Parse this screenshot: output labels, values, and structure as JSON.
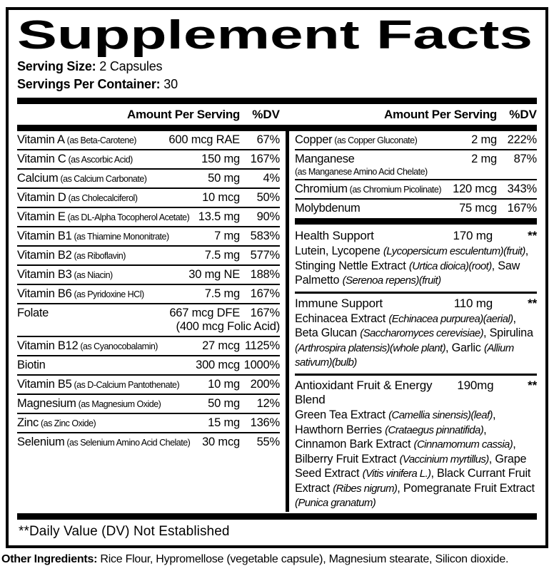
{
  "meta": {
    "colors": {
      "text": "#000000",
      "background": "#ffffff"
    }
  },
  "title": "Supplement Facts",
  "serving": {
    "size_label": "Serving Size:",
    "size_value": "2 Capsules",
    "container_label": "Servings Per Container:",
    "container_value": "30"
  },
  "table_header": {
    "amount": "Amount Per Serving",
    "dv": "%DV"
  },
  "left_rows": [
    {
      "name": "Vitamin A",
      "form": "(as Beta-Carotene)",
      "amount": "600 mcg RAE",
      "dv": "67%"
    },
    {
      "name": "Vitamin C",
      "form": "(as Ascorbic Acid)",
      "amount": "150 mg",
      "dv": "167%"
    },
    {
      "name": "Calcium",
      "form": "(as Calcium Carbonate)",
      "amount": "50 mg",
      "dv": "4%"
    },
    {
      "name": "Vitamin D",
      "form": "(as Cholecalciferol)",
      "amount": "10 mcg",
      "dv": "50%"
    },
    {
      "name": "Vitamin E",
      "form": "(as DL-Alpha Tocopherol Acetate)",
      "amount": "13.5 mg",
      "dv": "90%"
    },
    {
      "name": "Vitamin B1",
      "form": "(as Thiamine Mononitrate)",
      "amount": "7 mg",
      "dv": "583%"
    },
    {
      "name": "Vitamin B2",
      "form": "(as Riboflavin)",
      "amount": "7.5 mg",
      "dv": "577%"
    },
    {
      "name": "Vitamin B3",
      "form": "(as Niacin)",
      "amount": "30 mg NE",
      "dv": "188%"
    },
    {
      "name": "Vitamin B6",
      "form": "(as Pyridoxine HCl)",
      "amount": "7.5 mg",
      "dv": "167%"
    },
    {
      "name": "Folate",
      "form": "",
      "amount": "667 mcg DFE",
      "amount2": "(400 mcg Folic Acid)",
      "dv": "167%"
    },
    {
      "name": "Vitamin B12",
      "form": "(as Cyanocobalamin)",
      "amount": "27 mcg",
      "dv": "1125%"
    },
    {
      "name": "Biotin",
      "form": "",
      "amount": "300 mcg",
      "dv": "1000%"
    },
    {
      "name": "Vitamin B5",
      "form": "(as D-Calcium Pantothenate)",
      "amount": "10 mg",
      "dv": "200%"
    },
    {
      "name": "Magnesium",
      "form": "(as Magnesium Oxide)",
      "amount": "50 mg",
      "dv": "12%"
    },
    {
      "name": "Zinc",
      "form": "(as Zinc Oxide)",
      "amount": "15 mg",
      "dv": "136%"
    },
    {
      "name": "Selenium",
      "form": "(as Selenium Amino Acid Chelate)",
      "amount": "30 mcg",
      "dv": "55%"
    }
  ],
  "right_rows": [
    {
      "name": "Copper",
      "form": "(as Copper Gluconate)",
      "amount": "2 mg",
      "dv": "222%"
    },
    {
      "name": "Manganese",
      "form2": "(as Manganese Amino Acid Chelate)",
      "amount": "2 mg",
      "dv": "87%"
    },
    {
      "name": "Chromium",
      "form": "(as Chromium Picolinate)",
      "amount": "120 mcg",
      "dv": "343%"
    },
    {
      "name": "Molybdenum",
      "form": "",
      "amount": "75 mcg",
      "dv": "167%"
    }
  ],
  "blends": [
    {
      "name": "Health Support",
      "amount": "170 mg",
      "dv": "**",
      "desc": [
        {
          "t": "Lutein, Lycopene "
        },
        {
          "t": "(Lycopersicum esculentum)(fruit)",
          "i": true
        },
        {
          "t": ", Stinging Nettle Extract "
        },
        {
          "t": "(Urtica dioica)(root)",
          "i": true
        },
        {
          "t": ", Saw Palmetto "
        },
        {
          "t": "(Serenoa repens)(fruit)",
          "i": true
        }
      ]
    },
    {
      "name": "Immune Support",
      "amount": "110 mg",
      "dv": "**",
      "desc": [
        {
          "t": "Echinacea Extract "
        },
        {
          "t": "(Echinacea purpurea)(aerial)",
          "i": true
        },
        {
          "t": ", Beta Glucan "
        },
        {
          "t": "(Saccharomyces cerevisiae)",
          "i": true
        },
        {
          "t": ", Spirulina "
        },
        {
          "t": "(Arthrospira platensis)(whole plant)",
          "i": true
        },
        {
          "t": ", Garlic "
        },
        {
          "t": "(Allium sativum)(bulb)",
          "i": true
        }
      ]
    },
    {
      "name": "Antioxidant Fruit & Energy Blend",
      "amount": "190mg",
      "dv": "**",
      "desc": [
        {
          "t": "Green Tea Extract "
        },
        {
          "t": "(Camellia sinensis)(leaf)",
          "i": true
        },
        {
          "t": ", Hawthorn Berries "
        },
        {
          "t": "(Crataegus pinnatifida)",
          "i": true
        },
        {
          "t": ", Cinnamon Bark Extract "
        },
        {
          "t": "(Cinnamomum cassia)",
          "i": true
        },
        {
          "t": ", Bilberry Fruit Extract "
        },
        {
          "t": "(Vaccinium myrtillus)",
          "i": true
        },
        {
          "t": ", Grape Seed Extract "
        },
        {
          "t": "(Vitis vinifera L.)",
          "i": true
        },
        {
          "t": ", Black Currant Fruit Extract "
        },
        {
          "t": "(Ribes nigrum)",
          "i": true
        },
        {
          "t": ", Pomegranate Fruit Extract "
        },
        {
          "t": "(Punica granatum)",
          "i": true
        }
      ]
    }
  ],
  "footnote": "**Daily Value (DV) Not Established",
  "other_ingredients": {
    "label": "Other Ingredients:",
    "text": "Rice Flour, Hypromellose (vegetable capsule), Magnesium stearate, Silicon dioxide."
  }
}
